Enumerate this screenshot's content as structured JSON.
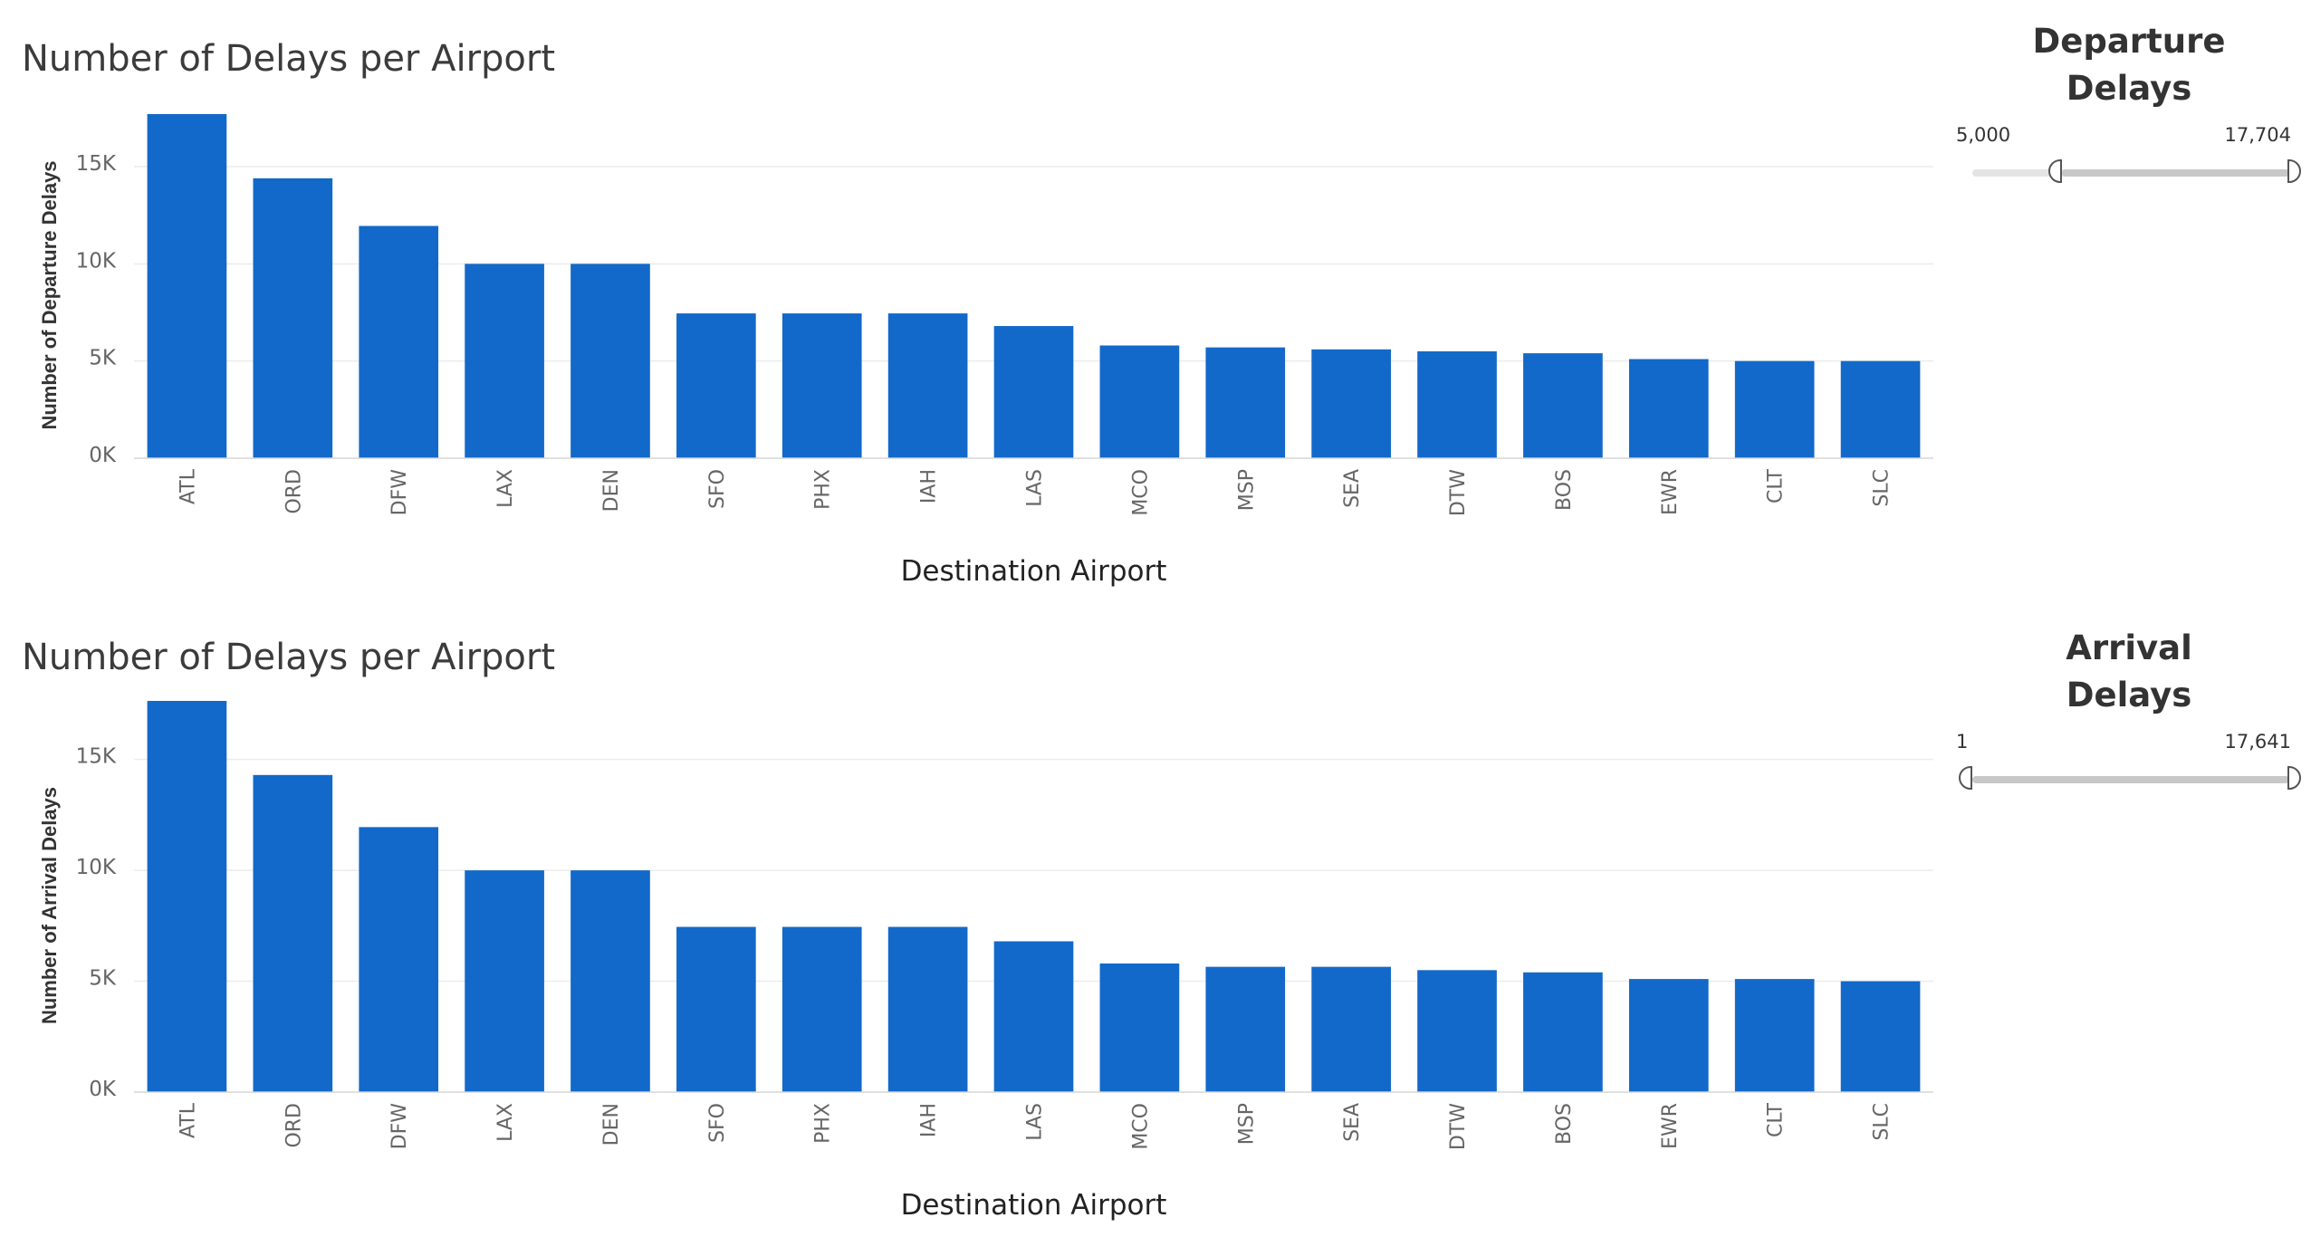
{
  "colors": {
    "bar": "#1269c9",
    "grid": "#ececec",
    "text": "#333333"
  },
  "chart_data": [
    {
      "type": "bar",
      "title": "Number of Delays per Airport",
      "xlabel": "Destination Airport",
      "ylabel": "Number of Departure Delays",
      "categories": [
        "ATL",
        "ORD",
        "DFW",
        "LAX",
        "DEN",
        "SFO",
        "PHX",
        "IAH",
        "LAS",
        "MCO",
        "MSP",
        "SEA",
        "DTW",
        "BOS",
        "EWR",
        "CLT",
        "SLC"
      ],
      "values": [
        17704,
        14400,
        11950,
        10000,
        10000,
        7450,
        7450,
        7450,
        6800,
        5800,
        5700,
        5600,
        5500,
        5400,
        5100,
        5000,
        5000
      ],
      "y_ticks": [
        0,
        5000,
        10000,
        15000
      ],
      "y_tick_labels": [
        "0K",
        "5K",
        "10K",
        "15K"
      ],
      "ylim": [
        0,
        17704
      ],
      "grid": true
    },
    {
      "type": "bar",
      "title": "Number of Delays per Airport",
      "xlabel": "Destination Airport",
      "ylabel": "Number of Arrival Delays",
      "categories": [
        "ATL",
        "ORD",
        "DFW",
        "LAX",
        "DEN",
        "SFO",
        "PHX",
        "IAH",
        "LAS",
        "MCO",
        "MSP",
        "SEA",
        "DTW",
        "BOS",
        "EWR",
        "CLT",
        "SLC"
      ],
      "values": [
        17641,
        14300,
        11950,
        10000,
        10000,
        7450,
        7450,
        7450,
        6800,
        5800,
        5650,
        5650,
        5500,
        5400,
        5100,
        5100,
        5000
      ],
      "y_ticks": [
        0,
        5000,
        10000,
        15000
      ],
      "y_tick_labels": [
        "0K",
        "5K",
        "10K",
        "15K"
      ],
      "ylim": [
        0,
        17641
      ],
      "grid": true
    }
  ],
  "filters": [
    {
      "title_line1": "Departure",
      "title_line2": "Delays",
      "min_label": "5,000",
      "max_label": "17,704",
      "range_min": 1,
      "range_max": 17704,
      "selected_min": 5000,
      "selected_max": 17704
    },
    {
      "title_line1": "Arrival",
      "title_line2": "Delays",
      "min_label": "1",
      "max_label": "17,641",
      "range_min": 1,
      "range_max": 17641,
      "selected_min": 1,
      "selected_max": 17641
    }
  ]
}
